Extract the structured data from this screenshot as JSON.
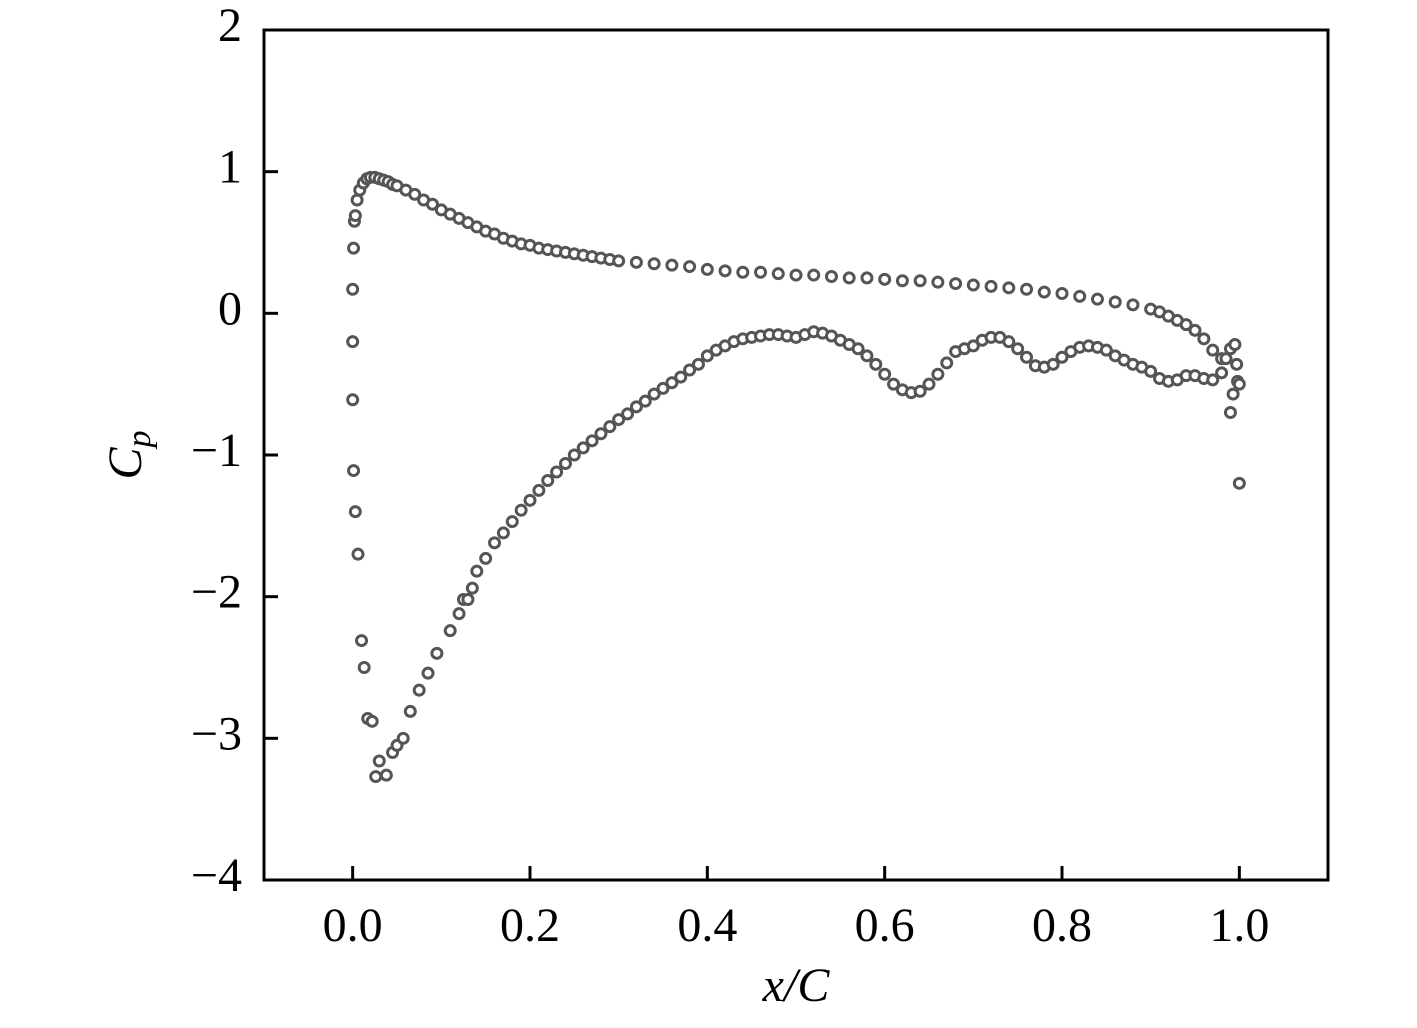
{
  "chart_data": {
    "type": "scatter",
    "xlabel": "x/C",
    "ylabel": {
      "text": "C",
      "subscript": "p"
    },
    "xlim": [
      -0.1,
      1.1
    ],
    "ylim": [
      -4,
      2
    ],
    "xticks": [
      {
        "value": 0,
        "label": "0.0"
      },
      {
        "value": 0.2,
        "label": "0.2"
      },
      {
        "value": 0.4,
        "label": "0.4"
      },
      {
        "value": 0.6,
        "label": "0.6"
      },
      {
        "value": 0.8,
        "label": "0.8"
      },
      {
        "value": 1,
        "label": "1.0"
      }
    ],
    "yticks": [
      2,
      1,
      0,
      {
        "value": -1,
        "label": "−1"
      },
      {
        "value": -2,
        "label": "−2"
      },
      {
        "value": -3,
        "label": "−3"
      },
      {
        "value": -4,
        "label": "−4"
      }
    ],
    "series": [
      {
        "color": "#555555",
        "x": [
          0.0,
          0.001,
          0.002,
          0.003,
          0.005,
          0.008,
          0.012,
          0.016,
          0.02,
          0.025,
          0.03,
          0.035,
          0.04,
          0.045,
          0.05,
          0.06,
          0.07,
          0.08,
          0.09,
          0.1,
          0.11,
          0.12,
          0.13,
          0.14,
          0.15,
          0.16,
          0.17,
          0.18,
          0.19,
          0.2,
          0.21,
          0.22,
          0.23,
          0.24,
          0.25,
          0.26,
          0.27,
          0.28,
          0.29,
          0.3,
          0.32,
          0.34,
          0.36,
          0.38,
          0.4,
          0.42,
          0.44,
          0.46,
          0.48,
          0.5,
          0.52,
          0.54,
          0.56,
          0.58,
          0.6,
          0.62,
          0.64,
          0.66,
          0.68,
          0.7,
          0.72,
          0.74,
          0.76,
          0.78,
          0.8,
          0.82,
          0.84,
          0.86,
          0.88,
          0.9,
          0.91,
          0.92,
          0.93,
          0.94,
          0.95,
          0.96,
          0.97,
          0.98,
          0.99
        ],
        "values": [
          0.17,
          0.46,
          0.65,
          0.69,
          0.8,
          0.87,
          0.92,
          0.95,
          0.96,
          0.96,
          0.95,
          0.94,
          0.93,
          0.91,
          0.9,
          0.87,
          0.84,
          0.8,
          0.77,
          0.73,
          0.7,
          0.67,
          0.64,
          0.61,
          0.58,
          0.56,
          0.53,
          0.51,
          0.49,
          0.48,
          0.46,
          0.45,
          0.44,
          0.43,
          0.42,
          0.41,
          0.4,
          0.39,
          0.38,
          0.37,
          0.36,
          0.35,
          0.34,
          0.33,
          0.31,
          0.3,
          0.29,
          0.29,
          0.28,
          0.27,
          0.27,
          0.26,
          0.25,
          0.25,
          0.24,
          0.23,
          0.23,
          0.22,
          0.21,
          0.2,
          0.19,
          0.18,
          0.17,
          0.15,
          0.14,
          0.12,
          0.1,
          0.08,
          0.06,
          0.03,
          0.01,
          -0.02,
          -0.05,
          -0.08,
          -0.12,
          -0.18,
          -0.26,
          -0.32,
          -0.25
        ]
      },
      {
        "color": "#555555",
        "x": [
          0.0,
          0.0,
          0.001,
          0.003,
          0.006,
          0.01,
          0.013,
          0.017,
          0.022,
          0.026,
          0.03,
          0.038,
          0.045,
          0.05,
          0.057,
          0.065,
          0.075,
          0.085,
          0.095,
          0.11,
          0.12,
          0.125,
          0.13,
          0.135,
          0.14,
          0.15,
          0.16,
          0.17,
          0.18,
          0.19,
          0.2,
          0.21,
          0.22,
          0.23,
          0.24,
          0.25,
          0.26,
          0.27,
          0.28,
          0.29,
          0.3,
          0.31,
          0.32,
          0.33,
          0.34,
          0.35,
          0.36,
          0.37,
          0.38,
          0.39,
          0.4,
          0.41,
          0.42,
          0.43,
          0.44,
          0.45,
          0.46,
          0.47,
          0.48,
          0.49,
          0.5,
          0.51,
          0.52,
          0.53,
          0.54,
          0.55,
          0.56,
          0.57,
          0.58,
          0.59,
          0.6,
          0.61,
          0.62,
          0.63,
          0.64,
          0.65,
          0.66,
          0.67,
          0.68,
          0.69,
          0.7,
          0.71,
          0.72,
          0.73,
          0.74,
          0.75,
          0.76,
          0.77,
          0.78,
          0.79,
          0.8,
          0.81,
          0.82,
          0.83,
          0.84,
          0.85,
          0.86,
          0.87,
          0.88,
          0.89,
          0.9,
          0.91,
          0.92,
          0.93,
          0.94,
          0.95,
          0.96,
          0.97,
          0.98,
          0.985,
          0.99,
          0.993,
          0.995,
          0.997,
          0.998,
          1.0,
          1.0
        ],
        "values": [
          -0.2,
          -0.61,
          -1.11,
          -1.4,
          -1.7,
          -2.31,
          -2.5,
          -2.86,
          -2.88,
          -3.27,
          -3.16,
          -3.26,
          -3.1,
          -3.05,
          -3.0,
          -2.81,
          -2.66,
          -2.54,
          -2.4,
          -2.24,
          -2.12,
          -2.02,
          -2.02,
          -1.94,
          -1.82,
          -1.73,
          -1.62,
          -1.55,
          -1.47,
          -1.39,
          -1.32,
          -1.25,
          -1.18,
          -1.12,
          -1.06,
          -1.0,
          -0.95,
          -0.9,
          -0.85,
          -0.8,
          -0.75,
          -0.71,
          -0.66,
          -0.62,
          -0.57,
          -0.53,
          -0.49,
          -0.45,
          -0.4,
          -0.36,
          -0.3,
          -0.26,
          -0.23,
          -0.2,
          -0.18,
          -0.17,
          -0.16,
          -0.15,
          -0.15,
          -0.16,
          -0.17,
          -0.15,
          -0.13,
          -0.14,
          -0.16,
          -0.19,
          -0.22,
          -0.25,
          -0.3,
          -0.36,
          -0.43,
          -0.5,
          -0.54,
          -0.56,
          -0.55,
          -0.5,
          -0.43,
          -0.35,
          -0.27,
          -0.25,
          -0.23,
          -0.19,
          -0.17,
          -0.17,
          -0.2,
          -0.25,
          -0.31,
          -0.37,
          -0.38,
          -0.36,
          -0.31,
          -0.27,
          -0.24,
          -0.23,
          -0.24,
          -0.26,
          -0.3,
          -0.33,
          -0.36,
          -0.38,
          -0.41,
          -0.46,
          -0.48,
          -0.47,
          -0.44,
          -0.44,
          -0.46,
          -0.47,
          -0.42,
          -0.32,
          -0.7,
          -0.57,
          -0.22,
          -0.36,
          -0.48,
          -1.2,
          -0.5
        ]
      }
    ]
  }
}
